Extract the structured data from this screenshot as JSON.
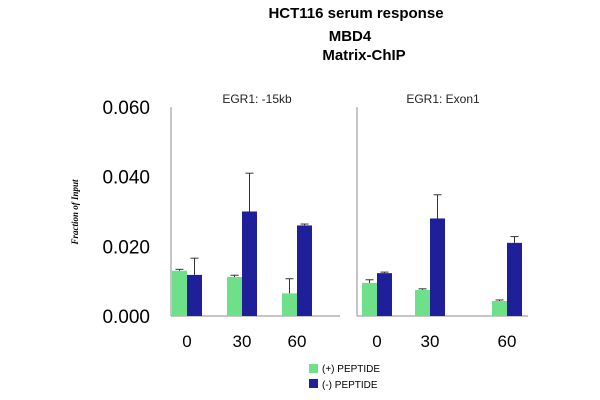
{
  "chart_data": {
    "type": "bar",
    "title_lines": [
      "HCT116 serum response",
      "MBD4",
      "Matrix-ChIP"
    ],
    "ylabel": "Fraction of Input",
    "ylim": [
      0,
      0.06
    ],
    "yticks": [
      "0.000",
      "0.020",
      "0.040",
      "0.060"
    ],
    "categories": [
      "0",
      "30",
      "60"
    ],
    "legend": [
      "(+) PEPTIDE",
      "(-) PEPTIDE"
    ],
    "colors": {
      "plus_peptide": "#6fe08a",
      "minus_peptide": "#1f1f99"
    },
    "panels": [
      {
        "title": "EGR1: -15kb",
        "series": [
          {
            "name": "(+) PEPTIDE",
            "values": [
              0.013,
              0.0112,
              0.0065
            ],
            "errors": [
              0.0004,
              0.0005,
              0.0042
            ]
          },
          {
            "name": "(-) PEPTIDE",
            "values": [
              0.0118,
              0.03,
              0.026
            ],
            "errors": [
              0.0048,
              0.011,
              0.0004
            ]
          }
        ]
      },
      {
        "title": "EGR1: Exon1",
        "series": [
          {
            "name": "(+) PEPTIDE",
            "values": [
              0.0095,
              0.0075,
              0.0043
            ],
            "errors": [
              0.0009,
              0.0003,
              0.0003
            ]
          },
          {
            "name": "(-) PEPTIDE",
            "values": [
              0.0123,
              0.028,
              0.021
            ],
            "errors": [
              0.0003,
              0.0068,
              0.0018
            ]
          }
        ]
      }
    ]
  }
}
